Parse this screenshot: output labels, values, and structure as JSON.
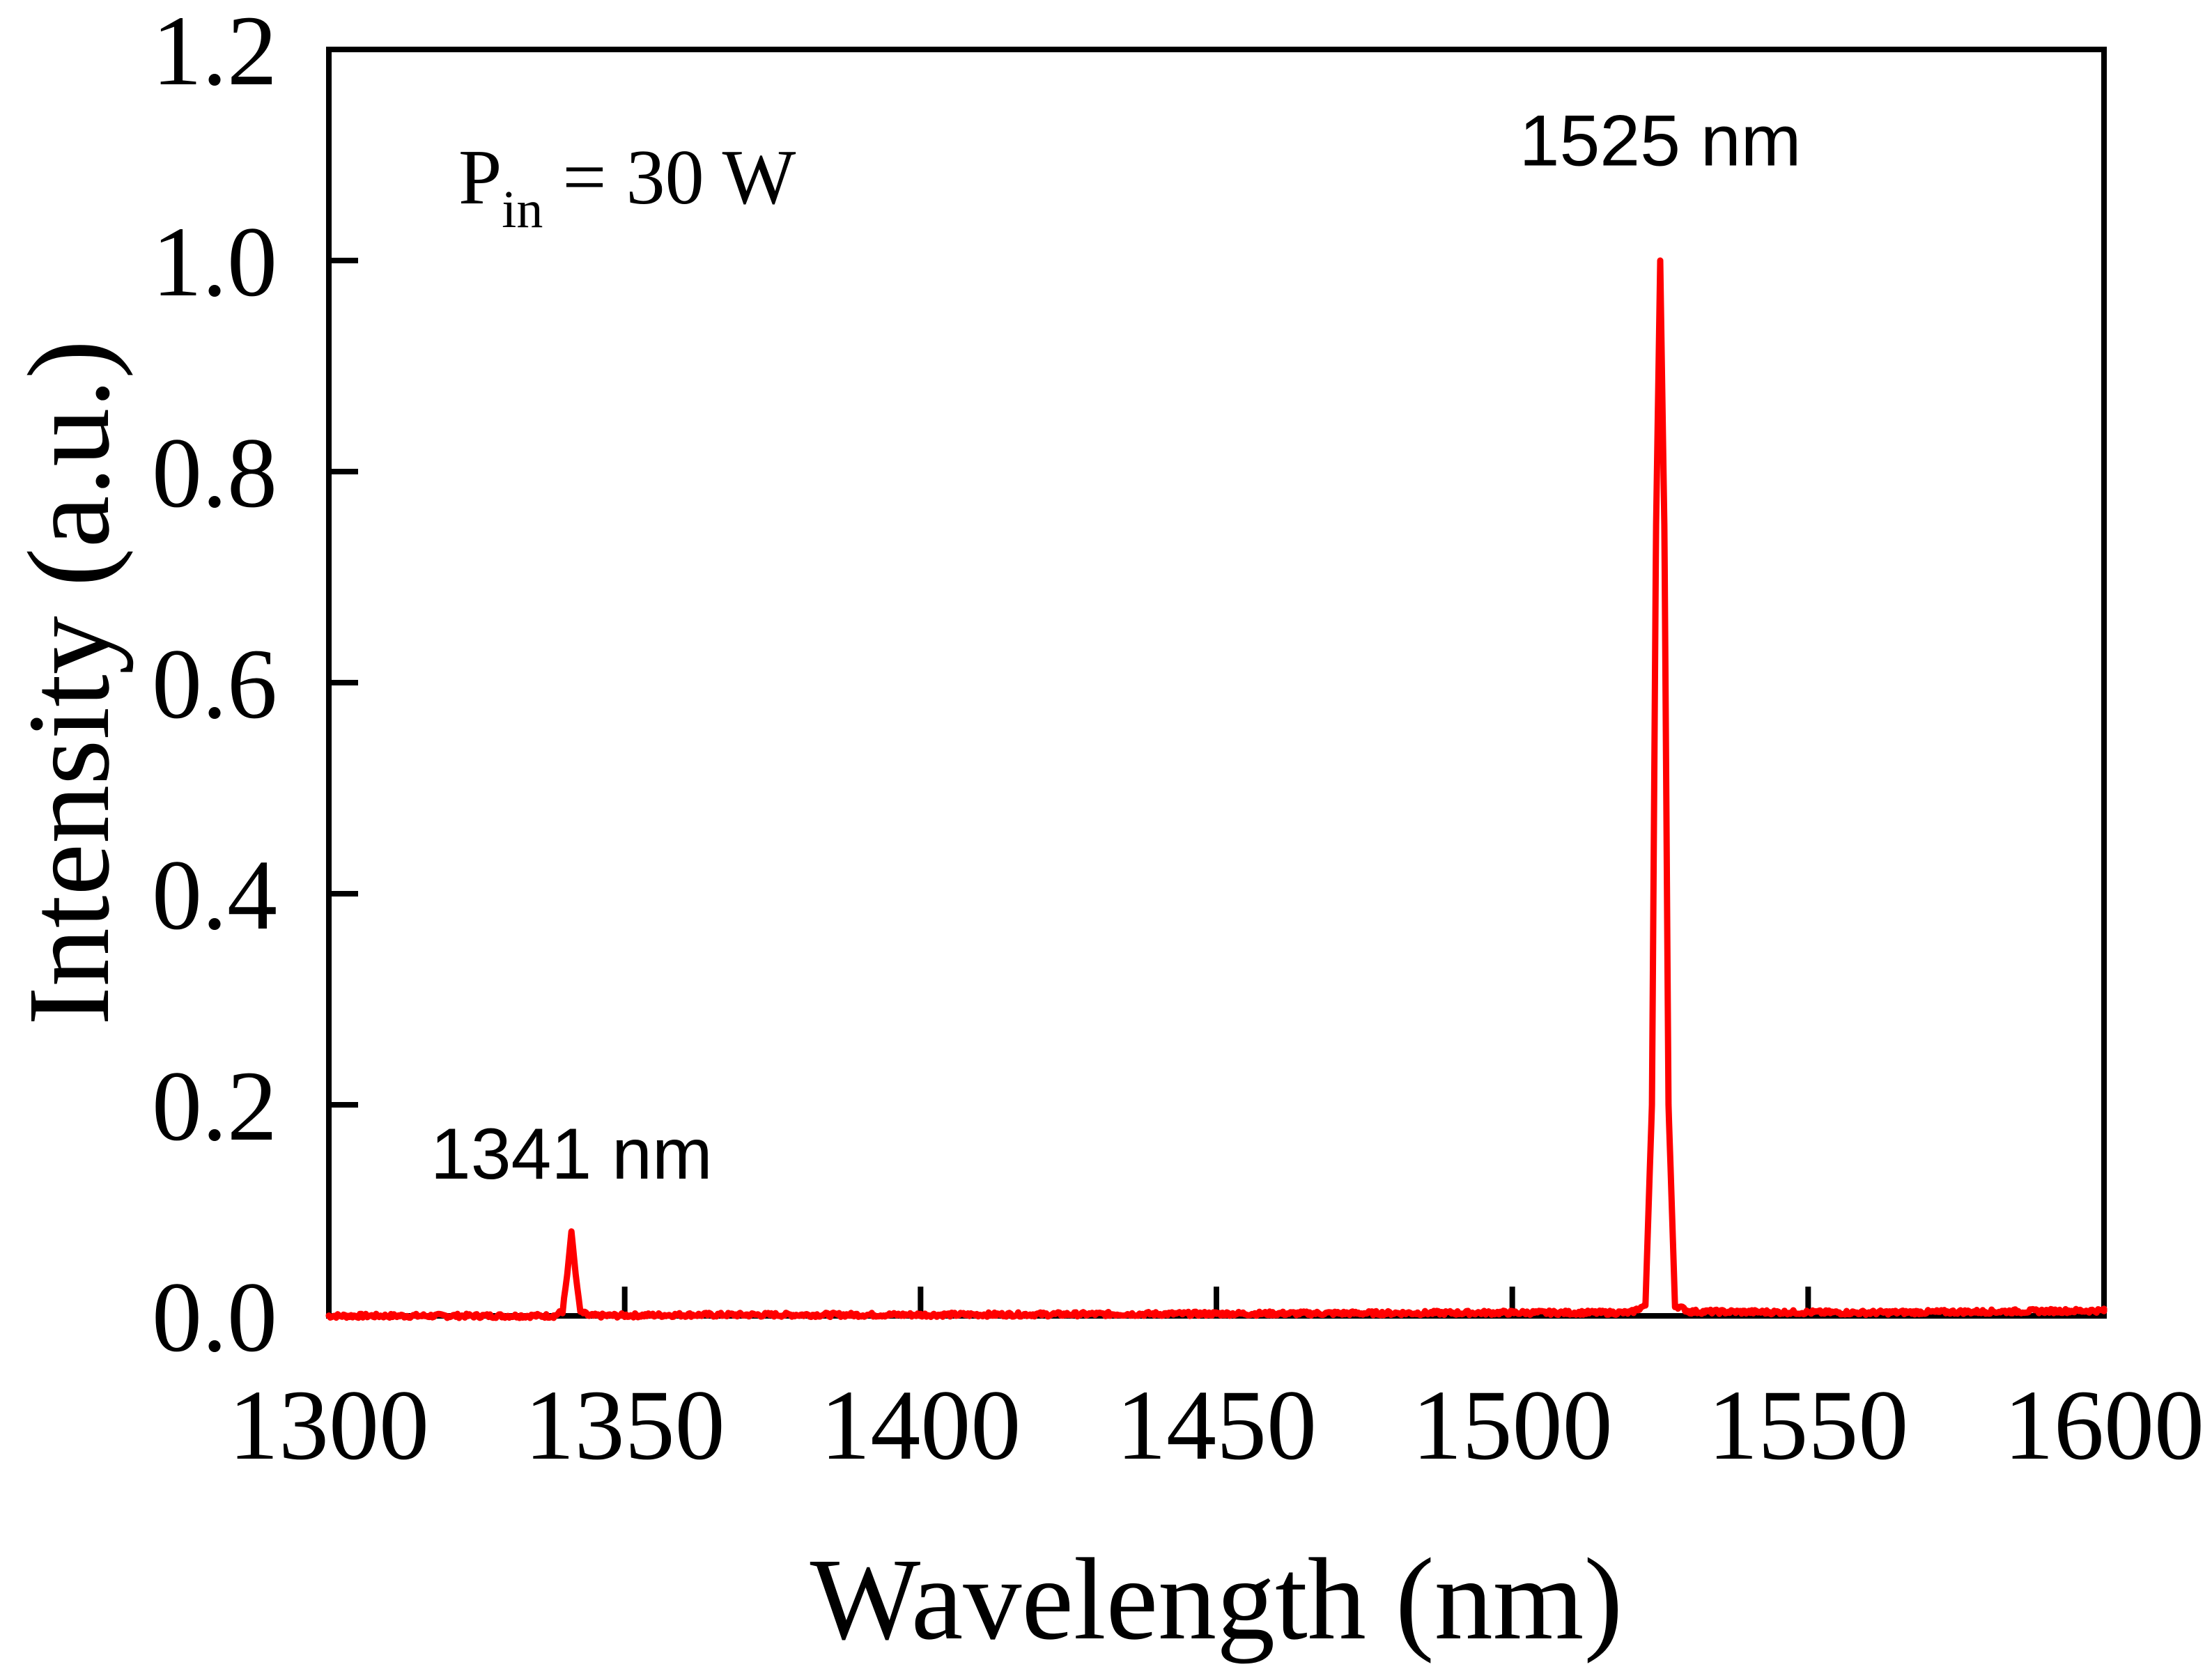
{
  "chart_data": {
    "type": "line",
    "title": "",
    "xlabel": "Wavelength (nm)",
    "ylabel": "Intensity (a.u.)",
    "xlim": [
      1300,
      1600
    ],
    "ylim": [
      0,
      1.2
    ],
    "xticks": [
      1300,
      1350,
      1400,
      1450,
      1500,
      1550,
      1600
    ],
    "xtick_labels": [
      "1300",
      "1350",
      "1400",
      "1450",
      "1500",
      "1550",
      "1600"
    ],
    "yticks": [
      0.0,
      0.2,
      0.4,
      0.6,
      0.8,
      1.0,
      1.2
    ],
    "ytick_labels": [
      "0.0",
      "0.2",
      "0.4",
      "0.6",
      "0.8",
      "1.0",
      "1.2"
    ],
    "grid": false,
    "series": [
      {
        "name": "spectrum",
        "color": "#ff0000",
        "x": [
          1300,
          1320,
          1338,
          1339.5,
          1340.3,
          1341,
          1341.7,
          1342.5,
          1344,
          1360,
          1400,
          1450,
          1500,
          1520,
          1522.5,
          1523.6,
          1524.3,
          1525,
          1525.7,
          1526.4,
          1527.5,
          1530,
          1560,
          1580,
          1600
        ],
        "values": [
          0.0,
          0.0,
          0.0,
          0.004,
          0.04,
          0.08,
          0.04,
          0.004,
          0.0,
          0.001,
          0.001,
          0.002,
          0.003,
          0.003,
          0.01,
          0.2,
          0.75,
          1.0,
          0.75,
          0.2,
          0.01,
          0.004,
          0.003,
          0.004,
          0.005
        ]
      }
    ],
    "annotations": [
      {
        "text": "1341 nm",
        "x": 1341,
        "y": 0.13
      },
      {
        "text": "1525 nm",
        "x": 1525,
        "y": 1.09
      }
    ]
  },
  "label": {
    "p_main": "P",
    "p_sub": "in",
    "p_rest": " = 30 W"
  }
}
